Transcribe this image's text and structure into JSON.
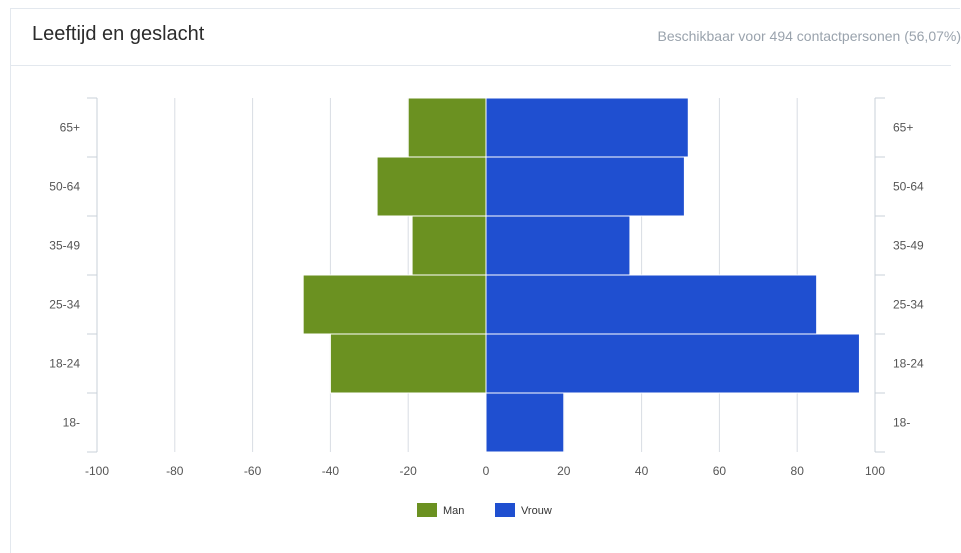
{
  "widget": {
    "title": "Leeftijd en geslacht",
    "subtitle": "Beschikbaar voor 494 contactpersonen (56,07%)"
  },
  "colors": {
    "man": "#6b9121",
    "vrouw": "#1f4fd0",
    "grid": "#d8dde3"
  },
  "chart_data": {
    "type": "bar",
    "orientation": "horizontal-diverging",
    "title": "Leeftijd en geslacht",
    "categories": [
      "65+",
      "50-64",
      "35-49",
      "25-34",
      "18-24",
      "18-"
    ],
    "series": [
      {
        "name": "Man",
        "values": [
          -20,
          -28,
          -19,
          -47,
          -40,
          0
        ]
      },
      {
        "name": "Vrouw",
        "values": [
          52,
          51,
          37,
          85,
          96,
          20
        ]
      }
    ],
    "x_ticks": [
      -100,
      -80,
      -60,
      -40,
      -20,
      0,
      20,
      40,
      60,
      80,
      100
    ],
    "xlim": [
      -100,
      100
    ],
    "xlabel": "",
    "ylabel": "",
    "grid": true,
    "legend": "bottom-center"
  }
}
